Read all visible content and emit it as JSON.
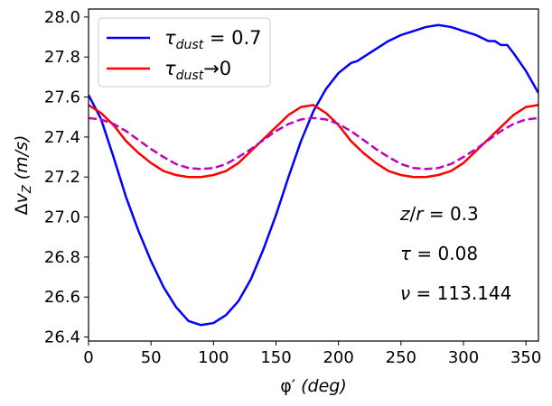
{
  "chart_data": {
    "type": "line",
    "xlabel": "φ′ (deg)",
    "ylabel": "Δv_Z (m/s)",
    "xlim": [
      0,
      360
    ],
    "ylim": [
      26.38,
      28.04
    ],
    "x_ticks": [
      0,
      50,
      100,
      150,
      200,
      250,
      300,
      350
    ],
    "y_ticks": [
      26.4,
      26.6,
      26.8,
      27.0,
      27.2,
      27.4,
      27.6,
      27.8,
      28.0
    ],
    "grid": false,
    "legend_position": "top-left",
    "legend": [
      {
        "label": "τ_dust = 0.7",
        "color": "#0000ff"
      },
      {
        "label": "τ_dust → 0",
        "color": "#ff0000"
      }
    ],
    "series": [
      {
        "name": "τ_dust = 0.7",
        "color": "#0000ff",
        "style": "solid",
        "x": [
          0,
          10,
          20,
          30,
          40,
          50,
          60,
          70,
          80,
          90,
          100,
          110,
          120,
          130,
          140,
          150,
          160,
          170,
          180,
          190,
          200,
          210,
          215,
          220,
          230,
          240,
          250,
          260,
          270,
          280,
          290,
          300,
          310,
          320,
          325,
          330,
          335,
          340,
          350,
          360
        ],
        "y": [
          27.61,
          27.49,
          27.3,
          27.1,
          26.93,
          26.78,
          26.65,
          26.55,
          26.48,
          26.46,
          26.47,
          26.51,
          26.58,
          26.69,
          26.84,
          27.01,
          27.2,
          27.38,
          27.53,
          27.64,
          27.72,
          27.77,
          27.78,
          27.8,
          27.84,
          27.88,
          27.91,
          27.93,
          27.95,
          27.96,
          27.95,
          27.93,
          27.91,
          27.88,
          27.88,
          27.86,
          27.86,
          27.82,
          27.73,
          27.62
        ]
      },
      {
        "name": "τ_dust → 0",
        "color": "#ff0000",
        "style": "solid",
        "x": [
          0,
          10,
          20,
          30,
          40,
          50,
          60,
          70,
          80,
          90,
          100,
          110,
          120,
          130,
          140,
          150,
          160,
          170,
          180,
          190,
          200,
          210,
          220,
          230,
          240,
          250,
          260,
          270,
          280,
          290,
          300,
          310,
          320,
          330,
          340,
          350,
          360
        ],
        "y": [
          27.56,
          27.52,
          27.46,
          27.38,
          27.32,
          27.27,
          27.23,
          27.21,
          27.2,
          27.2,
          27.21,
          27.23,
          27.27,
          27.33,
          27.39,
          27.45,
          27.51,
          27.55,
          27.56,
          27.52,
          27.46,
          27.38,
          27.32,
          27.27,
          27.23,
          27.21,
          27.2,
          27.2,
          27.21,
          27.23,
          27.27,
          27.33,
          27.39,
          27.45,
          27.51,
          27.55,
          27.56
        ]
      },
      {
        "name": "",
        "color": "#c000c0",
        "style": "dashed",
        "x": [
          0,
          10,
          20,
          30,
          40,
          50,
          60,
          70,
          80,
          90,
          100,
          110,
          120,
          130,
          140,
          150,
          160,
          170,
          180,
          190,
          200,
          210,
          220,
          230,
          240,
          250,
          260,
          270,
          280,
          290,
          300,
          310,
          320,
          330,
          340,
          350,
          360
        ],
        "y": [
          27.495,
          27.488,
          27.465,
          27.43,
          27.385,
          27.34,
          27.3,
          27.265,
          27.245,
          27.24,
          27.245,
          27.265,
          27.3,
          27.34,
          27.385,
          27.43,
          27.465,
          27.488,
          27.495,
          27.488,
          27.465,
          27.43,
          27.385,
          27.34,
          27.3,
          27.265,
          27.245,
          27.24,
          27.245,
          27.265,
          27.3,
          27.34,
          27.385,
          27.43,
          27.465,
          27.488,
          27.495
        ]
      }
    ],
    "annotations": [
      "z/r = 0.3",
      "τ = 0.08",
      "ν = 113.144"
    ]
  }
}
